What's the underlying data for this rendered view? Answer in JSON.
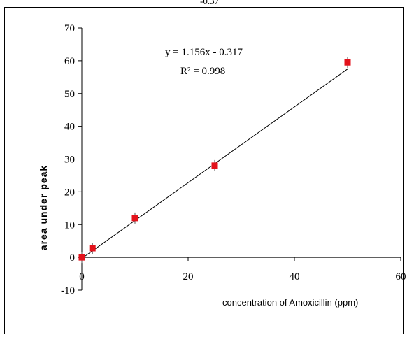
{
  "chart_data": {
    "type": "scatter",
    "top_fragment": "-0.37",
    "xlabel": "concentration  of Amoxicillin (ppm)",
    "ylabel": "area under peak",
    "xlim": [
      0,
      60
    ],
    "ylim": [
      -10,
      70
    ],
    "x_ticks": [
      "0",
      "20",
      "40",
      "60"
    ],
    "y_ticks": [
      "-10",
      "0",
      "10",
      "20",
      "30",
      "40",
      "50",
      "60",
      "70"
    ],
    "grid": false,
    "series": [
      {
        "points": [
          {
            "x": 0,
            "y": 0
          },
          {
            "x": 2,
            "y": 2.8
          },
          {
            "x": 10,
            "y": 12
          },
          {
            "x": 25,
            "y": 28
          },
          {
            "x": 50,
            "y": 59.5
          }
        ],
        "marker_color": "#e3121b"
      }
    ],
    "trendline": {
      "slope": 1.156,
      "intercept": -0.317,
      "equation": "y = 1.156x  - 0.317",
      "r2": "R² = 0.998",
      "color": "#000000"
    }
  }
}
